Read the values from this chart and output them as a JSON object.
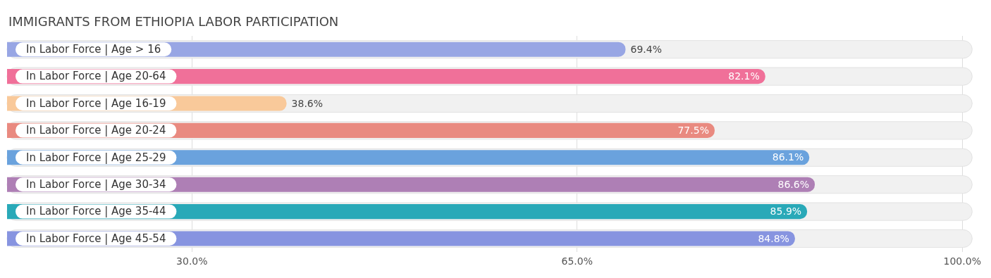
{
  "chart_data": {
    "type": "bar",
    "orientation": "horizontal",
    "title": "IMMIGRANTS FROM ETHIOPIA LABOR PARTICIPATION",
    "categories": [
      "In Labor Force | Age > 16",
      "In Labor Force | Age 20-64",
      "In Labor Force | Age 16-19",
      "In Labor Force | Age 20-24",
      "In Labor Force | Age 25-29",
      "In Labor Force | Age 30-34",
      "In Labor Force | Age 35-44",
      "In Labor Force | Age 45-54"
    ],
    "values": [
      69.4,
      82.1,
      38.6,
      77.5,
      86.1,
      86.6,
      85.9,
      84.8
    ],
    "colors": [
      "#98a6e4",
      "#f07099",
      "#f9c99a",
      "#e98a80",
      "#6aa2dd",
      "#ae7fb5",
      "#29a9b8",
      "#8794e0"
    ],
    "value_labels": [
      "69.4%",
      "82.1%",
      "38.6%",
      "77.5%",
      "86.1%",
      "86.6%",
      "85.9%",
      "84.8%"
    ],
    "xlim": [
      13.2,
      100.9
    ],
    "xticks": [
      {
        "value": 30,
        "label": "30.0%"
      },
      {
        "value": 65,
        "label": "65.0%"
      },
      {
        "value": 100,
        "label": "100.0%"
      }
    ],
    "grid": "x",
    "legend": false
  }
}
